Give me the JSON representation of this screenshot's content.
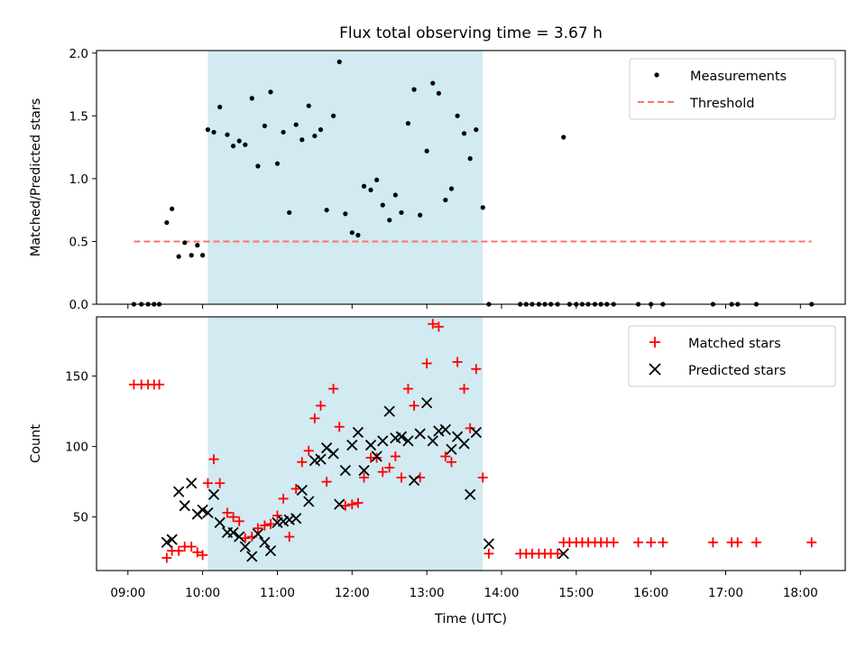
{
  "figure": {
    "title": "Flux total observing time = 3.67 h",
    "xlabel": "Time (UTC)"
  },
  "chart_data": [
    {
      "type": "scatter",
      "ylabel": "Matched/Predicted stars",
      "ylim": [
        0,
        2.02
      ],
      "yticks": [
        "0.0",
        "0.5",
        "1.0",
        "1.5",
        "2.0"
      ],
      "ytick_values": [
        0,
        0.5,
        1.0,
        1.5,
        2.0
      ],
      "xticks": [
        "09:00",
        "10:00",
        "11:00",
        "12:00",
        "13:00",
        "14:00",
        "15:00",
        "16:00",
        "17:00",
        "18:00"
      ],
      "xtick_values": [
        9,
        10,
        11,
        12,
        13,
        14,
        15,
        16,
        17,
        18
      ],
      "xlim": [
        8.58,
        18.6
      ],
      "shaded_interval": {
        "start": 10.07,
        "end": 13.75,
        "color": "#add8e6"
      },
      "legend": {
        "placement": "top-right",
        "entries": [
          "Measurements",
          "Threshold"
        ]
      },
      "threshold": {
        "name": "Threshold",
        "value": 0.5,
        "x_range": [
          9.08,
          18.15
        ],
        "color": "#ff7070"
      },
      "series": [
        {
          "name": "Measurements",
          "color": "#000000",
          "x": [
            9.08,
            9.18,
            9.27,
            9.35,
            9.42,
            9.52,
            9.59,
            9.68,
            9.76,
            9.85,
            9.93,
            10.0,
            10.07,
            10.15,
            10.23,
            10.33,
            10.41,
            10.49,
            10.57,
            10.66,
            10.74,
            10.83,
            10.91,
            11.0,
            11.08,
            11.16,
            11.25,
            11.33,
            11.42,
            11.5,
            11.58,
            11.66,
            11.75,
            11.83,
            11.91,
            12.0,
            12.08,
            12.16,
            12.25,
            12.33,
            12.41,
            12.5,
            12.58,
            12.66,
            12.75,
            12.83,
            12.91,
            13.0,
            13.08,
            13.16,
            13.25,
            13.33,
            13.41,
            13.5,
            13.58,
            13.66,
            13.75,
            13.83,
            14.25,
            14.33,
            14.41,
            14.5,
            14.58,
            14.66,
            14.75,
            14.83,
            14.91,
            15.0,
            15.08,
            15.16,
            15.25,
            15.33,
            15.41,
            15.5,
            15.83,
            16.0,
            16.16,
            16.83,
            17.08,
            17.16,
            17.41,
            18.15
          ],
          "y": [
            0.0,
            0.0,
            0.0,
            0.0,
            0.0,
            0.65,
            0.76,
            0.38,
            0.49,
            0.39,
            0.47,
            0.39,
            1.39,
            1.37,
            1.57,
            1.35,
            1.26,
            1.3,
            1.27,
            1.64,
            1.1,
            1.42,
            1.69,
            1.12,
            1.37,
            0.73,
            1.43,
            1.31,
            1.58,
            1.34,
            1.39,
            0.75,
            1.5,
            1.93,
            0.72,
            0.57,
            0.55,
            0.94,
            0.91,
            0.99,
            0.79,
            0.67,
            0.87,
            0.73,
            1.44,
            1.71,
            0.71,
            1.22,
            1.76,
            1.68,
            0.83,
            0.92,
            1.5,
            1.36,
            1.16,
            1.39,
            0.77,
            0.0,
            0.0,
            0.0,
            0.0,
            0.0,
            0.0,
            0.0,
            0.0,
            1.33,
            0.0,
            0.0,
            0.0,
            0.0,
            0.0,
            0.0,
            0.0,
            0.0,
            0.0,
            0.0,
            0.0,
            0.0,
            0.0,
            0.0,
            0.0,
            0.0
          ]
        }
      ]
    },
    {
      "type": "scatter",
      "ylabel": "Count",
      "ylim": [
        12,
        192
      ],
      "yticks": [
        "50",
        "100",
        "150"
      ],
      "ytick_values": [
        50,
        100,
        150
      ],
      "xticks": [
        "09:00",
        "10:00",
        "11:00",
        "12:00",
        "13:00",
        "14:00",
        "15:00",
        "16:00",
        "17:00",
        "18:00"
      ],
      "xtick_values": [
        9,
        10,
        11,
        12,
        13,
        14,
        15,
        16,
        17,
        18
      ],
      "xlim": [
        8.58,
        18.6
      ],
      "shaded_interval": {
        "start": 10.07,
        "end": 13.75,
        "color": "#add8e6"
      },
      "legend": {
        "placement": "top-right",
        "entries": [
          "Matched stars",
          "Predicted stars"
        ]
      },
      "series": [
        {
          "name": "Matched stars",
          "marker": "+",
          "color": "#ff0000",
          "x": [
            9.08,
            9.18,
            9.27,
            9.35,
            9.42,
            9.52,
            9.59,
            9.68,
            9.76,
            9.85,
            9.93,
            10.0,
            10.07,
            10.15,
            10.23,
            10.33,
            10.41,
            10.49,
            10.57,
            10.66,
            10.74,
            10.83,
            10.91,
            11.0,
            11.08,
            11.16,
            11.25,
            11.33,
            11.42,
            11.5,
            11.58,
            11.66,
            11.75,
            11.83,
            11.91,
            12.0,
            12.08,
            12.16,
            12.25,
            12.33,
            12.41,
            12.5,
            12.58,
            12.66,
            12.75,
            12.83,
            12.91,
            13.0,
            13.08,
            13.16,
            13.25,
            13.33,
            13.41,
            13.5,
            13.58,
            13.66,
            13.75,
            13.83,
            14.25,
            14.33,
            14.41,
            14.5,
            14.58,
            14.66,
            14.75,
            14.83,
            14.91,
            15.0,
            15.08,
            15.16,
            15.25,
            15.33,
            15.41,
            15.5,
            15.83,
            16.0,
            16.16,
            16.83,
            17.08,
            17.16,
            17.41,
            18.15
          ],
          "y": [
            144,
            144,
            144,
            144,
            144,
            21,
            26,
            26,
            29,
            29,
            25,
            23,
            74,
            91,
            74,
            53,
            50,
            47,
            35,
            36,
            42,
            44,
            45,
            51,
            63,
            36,
            70,
            89,
            97,
            120,
            129,
            75,
            141,
            114,
            58,
            59,
            60,
            78,
            92,
            92,
            82,
            85,
            93,
            78,
            141,
            129,
            78,
            159,
            187,
            185,
            93,
            89,
            160,
            141,
            113,
            155,
            78,
            24,
            24,
            24,
            24,
            24,
            24,
            24,
            24,
            32,
            32,
            32,
            32,
            32,
            32,
            32,
            32,
            32,
            32,
            32,
            32,
            32,
            32,
            32,
            32,
            32
          ]
        },
        {
          "name": "Predicted stars",
          "marker": "x",
          "color": "#000000",
          "x": [
            9.52,
            9.59,
            9.68,
            9.76,
            9.85,
            9.93,
            10.0,
            10.07,
            10.15,
            10.23,
            10.33,
            10.41,
            10.49,
            10.57,
            10.66,
            10.74,
            10.83,
            10.91,
            11.0,
            11.08,
            11.16,
            11.25,
            11.33,
            11.42,
            11.5,
            11.58,
            11.66,
            11.75,
            11.83,
            11.91,
            12.0,
            12.08,
            12.16,
            12.25,
            12.33,
            12.41,
            12.5,
            12.58,
            12.66,
            12.75,
            12.83,
            12.91,
            13.0,
            13.08,
            13.16,
            13.25,
            13.33,
            13.41,
            13.5,
            13.58,
            13.66,
            13.83,
            14.83
          ],
          "y": [
            32,
            34,
            68,
            58,
            74,
            52,
            55,
            53,
            66,
            46,
            39,
            39,
            36,
            29,
            22,
            38,
            32,
            26,
            46,
            47,
            48,
            49,
            69,
            61,
            90,
            91,
            99,
            95,
            59,
            83,
            101,
            110,
            83,
            101,
            93,
            104,
            125,
            106,
            107,
            104,
            76,
            109,
            131,
            104,
            111,
            112,
            98,
            107,
            102,
            66,
            110,
            31,
            24
          ]
        }
      ]
    }
  ]
}
